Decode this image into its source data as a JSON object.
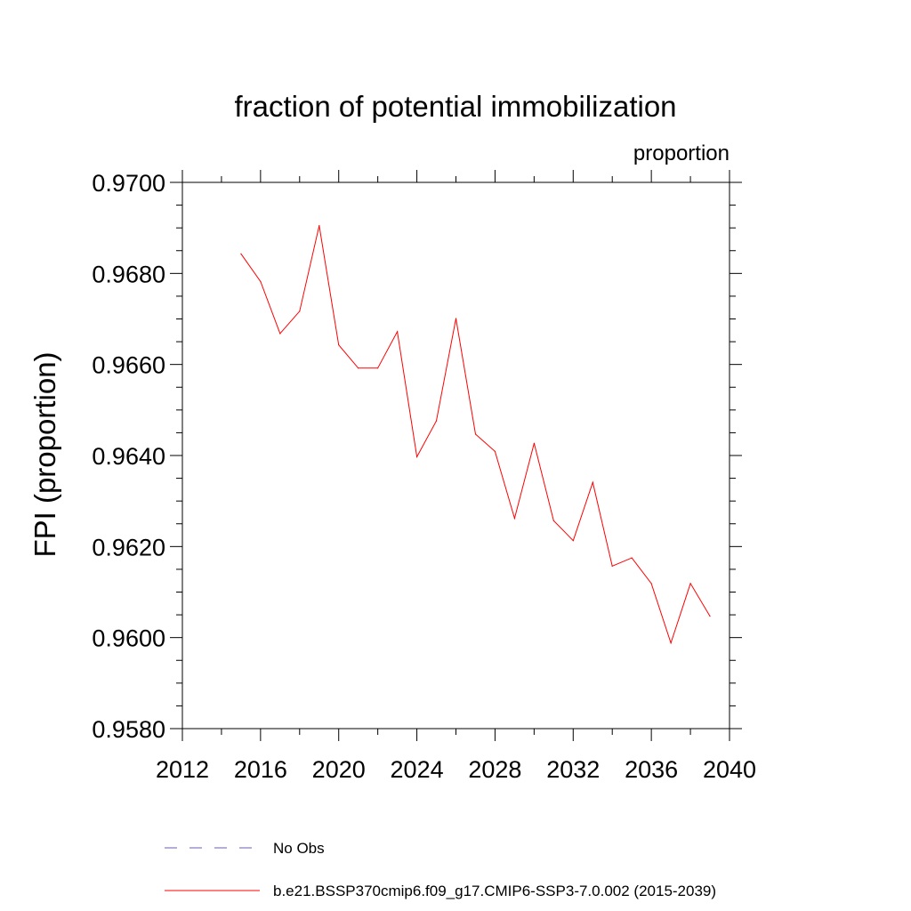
{
  "chart_data": {
    "type": "line",
    "title": "fraction of potential immobilization",
    "units_label": "proportion",
    "ylabel": "FPI  (proportion)",
    "xlabel": "",
    "xlim": [
      2012,
      2040
    ],
    "ylim": [
      0.958,
      0.97
    ],
    "x_ticks": [
      2012,
      2016,
      2020,
      2024,
      2028,
      2032,
      2036,
      2040
    ],
    "x_tick_labels": [
      "2012",
      "2016",
      "2020",
      "2024",
      "2028",
      "2032",
      "2036",
      "2040"
    ],
    "y_ticks": [
      0.958,
      0.96,
      0.962,
      0.964,
      0.966,
      0.968,
      0.97
    ],
    "y_tick_labels": [
      "0.9580",
      "0.9600",
      "0.9620",
      "0.9640",
      "0.9660",
      "0.9680",
      "0.9700"
    ],
    "series": [
      {
        "name": "b.e21.BSSP370cmip6.f09_g17.CMIP6-SSP3-7.0.002 (2015-2039)",
        "color": "#ff0000",
        "x": [
          2015,
          2016,
          2017,
          2018,
          2019,
          2020,
          2021,
          2022,
          2023,
          2024,
          2025,
          2026,
          2027,
          2028,
          2029,
          2030,
          2031,
          2032,
          2033,
          2034,
          2035,
          2036,
          2037,
          2038,
          2039
        ],
        "values": [
          0.96843,
          0.96782,
          0.96668,
          0.96717,
          0.96905,
          0.96643,
          0.96592,
          0.96592,
          0.96672,
          0.96397,
          0.96476,
          0.96701,
          0.96447,
          0.96409,
          0.96262,
          0.96427,
          0.96257,
          0.96213,
          0.96341,
          0.96157,
          0.96175,
          0.96119,
          0.95988,
          0.96119,
          0.96047
        ]
      }
    ],
    "legend": {
      "placement": "bottom",
      "entries": [
        {
          "label": "No Obs",
          "color": "#6b5fb0",
          "style": "dashed"
        },
        {
          "label": "b.e21.BSSP370cmip6.f09_g17.CMIP6-SSP3-7.0.002 (2015-2039)",
          "color": "#ff0000",
          "style": "solid"
        }
      ]
    }
  }
}
